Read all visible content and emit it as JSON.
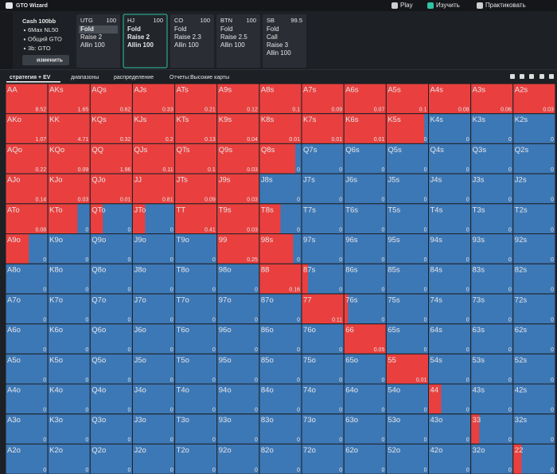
{
  "app": {
    "title": "GTO Wizard",
    "nav": [
      "Play",
      "Изучить",
      "Практиковать"
    ]
  },
  "sidebar": {
    "game": "Cash 100bb",
    "items": [
      "6Max NL50",
      "Общий GTO",
      "3b: GTO"
    ],
    "button": "изменить"
  },
  "positions": [
    {
      "name": "UTG",
      "stack": 100,
      "actions": [
        "Fold",
        "Raise 2",
        "Allin 100"
      ]
    },
    {
      "name": "HJ",
      "stack": 100,
      "actions": [
        "Fold",
        "Raise 2",
        "Allin 100"
      ]
    },
    {
      "name": "CO",
      "stack": 100,
      "actions": [
        "Fold",
        "Raise 2.3",
        "Allin 100"
      ]
    },
    {
      "name": "BTN",
      "stack": 100,
      "actions": [
        "Fold",
        "Raise 2.5",
        "Allin 100"
      ]
    },
    {
      "name": "SB",
      "stack": 99.5,
      "actions": [
        "Fold",
        "Call",
        "Raise 3",
        "Allin 100"
      ]
    }
  ],
  "tabs": [
    "стратегия + EV",
    "диапазоны",
    "распределение",
    "Отчеты:Высокие карты"
  ],
  "grid": {
    "colors": {
      "raise": "#e9403f",
      "fold": "#3d78b6"
    },
    "rows": [
      {
        "hands": [
          "AA",
          "AKs",
          "AQs",
          "AJs",
          "ATs",
          "A9s",
          "A8s",
          "A7s",
          "A6s",
          "A5s",
          "A4s",
          "A3s",
          "A2s"
        ],
        "ev": [
          8.52,
          1.65,
          0.62,
          0.33,
          0.21,
          0.12,
          0.1,
          0.09,
          0.07,
          0.1,
          0.08,
          0.06,
          0.03
        ],
        "raise": [
          100,
          100,
          100,
          100,
          100,
          100,
          100,
          100,
          100,
          100,
          100,
          100,
          100
        ]
      },
      {
        "hands": [
          "AKo",
          "KK",
          "KQs",
          "KJs",
          "KTs",
          "K9s",
          "K8s",
          "K7s",
          "K6s",
          "K5s",
          "K4s",
          "K3s",
          "K2s"
        ],
        "ev": [
          1.07,
          4.71,
          0.32,
          0.2,
          0.13,
          0.04,
          0.01,
          0.01,
          0.01,
          0,
          0,
          0,
          0
        ],
        "raise": [
          100,
          100,
          100,
          100,
          100,
          100,
          100,
          100,
          100,
          90,
          0,
          0,
          0
        ]
      },
      {
        "hands": [
          "AQo",
          "KQo",
          "QQ",
          "QJs",
          "QTs",
          "Q9s",
          "Q8s",
          "Q7s",
          "Q6s",
          "Q5s",
          "Q4s",
          "Q3s",
          "Q2s"
        ],
        "ev": [
          0.22,
          0.09,
          1.96,
          0.11,
          0.1,
          0.03,
          0,
          0,
          0,
          0,
          0,
          0,
          0
        ],
        "raise": [
          100,
          100,
          100,
          100,
          100,
          100,
          85,
          0,
          0,
          0,
          0,
          0,
          0
        ]
      },
      {
        "hands": [
          "AJo",
          "KJo",
          "QJo",
          "JJ",
          "JTs",
          "J9s",
          "J8s",
          "J7s",
          "J6s",
          "J5s",
          "J4s",
          "J3s",
          "J2s"
        ],
        "ev": [
          0.14,
          0.03,
          0.01,
          0.81,
          0.09,
          0.03,
          0,
          0,
          0,
          0,
          0,
          0,
          0
        ],
        "raise": [
          100,
          100,
          100,
          100,
          100,
          100,
          0,
          0,
          0,
          0,
          0,
          0,
          0
        ]
      },
      {
        "hands": [
          "ATo",
          "KTo",
          "QTo",
          "JTo",
          "TT",
          "T9s",
          "T8s",
          "T7s",
          "T6s",
          "T5s",
          "T4s",
          "T3s",
          "T2s"
        ],
        "ev": [
          0.08,
          0,
          0,
          0,
          0.41,
          0.03,
          0,
          0,
          0,
          0,
          0,
          0,
          0
        ],
        "raise": [
          100,
          70,
          30,
          30,
          100,
          100,
          50,
          0,
          0,
          0,
          0,
          0,
          0
        ]
      },
      {
        "hands": [
          "A9o",
          "K9o",
          "Q9o",
          "J9o",
          "T9o",
          "99",
          "98s",
          "97s",
          "96s",
          "95s",
          "94s",
          "93s",
          "92s"
        ],
        "ev": [
          0,
          0,
          0,
          0,
          0,
          0.25,
          0,
          0,
          0,
          0,
          0,
          0,
          0
        ],
        "raise": [
          55,
          0,
          0,
          0,
          0,
          100,
          80,
          0,
          0,
          0,
          0,
          0,
          0
        ]
      },
      {
        "hands": [
          "A8o",
          "K8o",
          "Q8o",
          "J8o",
          "T8o",
          "98o",
          "88",
          "87s",
          "86s",
          "85s",
          "84s",
          "83s",
          "82s"
        ],
        "ev": [
          0,
          0,
          0,
          0,
          0,
          0,
          0.16,
          0,
          0,
          0,
          0,
          0,
          0
        ],
        "raise": [
          0,
          0,
          0,
          0,
          0,
          0,
          100,
          15,
          0,
          0,
          0,
          0,
          0
        ]
      },
      {
        "hands": [
          "A7o",
          "K7o",
          "Q7o",
          "J7o",
          "T7o",
          "97o",
          "87o",
          "77",
          "76s",
          "75s",
          "74s",
          "73s",
          "72s"
        ],
        "ev": [
          0,
          0,
          0,
          0,
          0,
          0,
          0,
          0.11,
          0,
          0,
          0,
          0,
          0
        ],
        "raise": [
          0,
          0,
          0,
          0,
          0,
          0,
          0,
          100,
          10,
          0,
          0,
          0,
          0
        ]
      },
      {
        "hands": [
          "A6o",
          "K6o",
          "Q6o",
          "J6o",
          "T6o",
          "96o",
          "86o",
          "76o",
          "66",
          "65s",
          "64s",
          "63s",
          "62s"
        ],
        "ev": [
          0,
          0,
          0,
          0,
          0,
          0,
          0,
          0,
          0.05,
          0,
          0,
          0,
          0
        ],
        "raise": [
          0,
          0,
          0,
          0,
          0,
          0,
          0,
          0,
          100,
          0,
          0,
          0,
          0
        ]
      },
      {
        "hands": [
          "A5o",
          "K5o",
          "Q5o",
          "J5o",
          "T5o",
          "95o",
          "85o",
          "75o",
          "65o",
          "55",
          "54s",
          "53s",
          "52s"
        ],
        "ev": [
          0,
          0,
          0,
          0,
          0,
          0,
          0,
          0,
          0,
          0.01,
          0,
          0,
          0
        ],
        "raise": [
          0,
          0,
          0,
          0,
          0,
          0,
          0,
          0,
          0,
          100,
          0,
          0,
          0
        ]
      },
      {
        "hands": [
          "A4o",
          "K4o",
          "Q4o",
          "J4o",
          "T4o",
          "94o",
          "84o",
          "74o",
          "64o",
          "54o",
          "44",
          "43s",
          "42s"
        ],
        "ev": [
          0,
          0,
          0,
          0,
          0,
          0,
          0,
          0,
          0,
          0,
          0,
          0,
          0
        ],
        "raise": [
          0,
          0,
          0,
          0,
          0,
          0,
          0,
          0,
          0,
          0,
          30,
          0,
          0
        ]
      },
      {
        "hands": [
          "A3o",
          "K3o",
          "Q3o",
          "J3o",
          "T3o",
          "93o",
          "83o",
          "73o",
          "63o",
          "53o",
          "43o",
          "33",
          "32s"
        ],
        "ev": [
          0,
          0,
          0,
          0,
          0,
          0,
          0,
          0,
          0,
          0,
          0,
          0,
          0
        ],
        "raise": [
          0,
          0,
          0,
          0,
          0,
          0,
          0,
          0,
          0,
          0,
          0,
          20,
          0
        ]
      },
      {
        "hands": [
          "A2o",
          "K2o",
          "Q2o",
          "J2o",
          "T2o",
          "92o",
          "82o",
          "72o",
          "62o",
          "52o",
          "42o",
          "32o",
          "22"
        ],
        "ev": [
          0,
          0,
          0,
          0,
          0,
          0,
          0,
          0,
          0,
          0,
          0,
          0,
          0
        ],
        "raise": [
          0,
          0,
          0,
          0,
          0,
          0,
          0,
          0,
          0,
          0,
          0,
          0,
          20
        ]
      }
    ]
  }
}
